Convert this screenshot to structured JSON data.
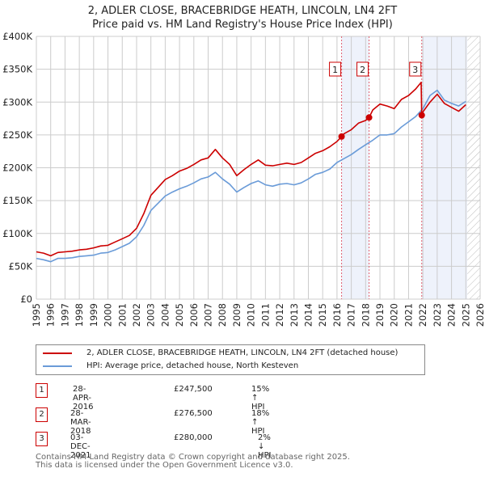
{
  "title_line1": "2, ADLER CLOSE, BRACEBRIDGE HEATH, LINCOLN, LN4 2FT",
  "title_line2": "Price paid vs. HM Land Registry's House Price Index (HPI)",
  "colors": {
    "property": "#cc0000",
    "hpi": "#6a9bd8",
    "shade": "#eef2fb",
    "marker_line": "#e06070"
  },
  "legend": {
    "property_label": "2, ADLER CLOSE, BRACEBRIDGE HEATH, LINCOLN, LN4 2FT (detached house)",
    "hpi_label": "HPI: Average price, detached house, North Kesteven"
  },
  "transactions": [
    {
      "num": "1",
      "date": "28-APR-2016",
      "price": "£247,500",
      "hpi": "15% ↑ HPI"
    },
    {
      "num": "2",
      "date": "28-MAR-2018",
      "price": "£276,500",
      "hpi": "18% ↑ HPI"
    },
    {
      "num": "3",
      "date": "03-DEC-2021",
      "price": "£280,000",
      "hpi": "2% ↓ HPI"
    }
  ],
  "footer_line1": "Contains HM Land Registry data © Crown copyright and database right 2025.",
  "footer_line2": "This data is licensed under the Open Government Licence v3.0.",
  "chart_data": {
    "type": "line",
    "title": "2, ADLER CLOSE, BRACEBRIDGE HEATH, LINCOLN, LN4 2FT — Price paid vs. HM Land Registry's House Price Index (HPI)",
    "xlabel": "",
    "ylabel": "",
    "xlim": [
      1995,
      2026
    ],
    "ylim": [
      0,
      400000
    ],
    "grid": true,
    "legend_position": "below",
    "x_ticks": [
      "1995",
      "1996",
      "1997",
      "1998",
      "1999",
      "2000",
      "2001",
      "2002",
      "2003",
      "2004",
      "2005",
      "2006",
      "2007",
      "2008",
      "2009",
      "2010",
      "2011",
      "2012",
      "2013",
      "2014",
      "2015",
      "2016",
      "2017",
      "2018",
      "2019",
      "2020",
      "2021",
      "2022",
      "2023",
      "2024",
      "2025",
      "2026"
    ],
    "y_ticks": [
      {
        "v": 0,
        "label": "£0"
      },
      {
        "v": 50000,
        "label": "£50K"
      },
      {
        "v": 100000,
        "label": "£100K"
      },
      {
        "v": 150000,
        "label": "£150K"
      },
      {
        "v": 200000,
        "label": "£200K"
      },
      {
        "v": 250000,
        "label": "£250K"
      },
      {
        "v": 300000,
        "label": "£300K"
      },
      {
        "v": 350000,
        "label": "£350K"
      },
      {
        "v": 400000,
        "label": "£400K"
      }
    ],
    "shaded_periods": [
      [
        2016.32,
        2018.24
      ],
      [
        2021.92,
        2025.1
      ]
    ],
    "forecast_hatch_from": 2025.1,
    "sales": [
      {
        "label": "1",
        "x": 2016.32,
        "y": 247500
      },
      {
        "label": "2",
        "x": 2018.24,
        "y": 276500
      },
      {
        "label": "3",
        "x": 2021.92,
        "y": 280000
      }
    ],
    "series": [
      {
        "name": "2, ADLER CLOSE, BRACEBRIDGE HEATH, LINCOLN, LN4 2FT (detached house)",
        "x": [
          1995,
          1995.5,
          1996,
          1996.5,
          1997,
          1997.5,
          1998,
          1998.5,
          1999,
          1999.5,
          2000,
          2000.5,
          2001,
          2001.5,
          2002,
          2002.5,
          2003,
          2003.5,
          2004,
          2004.5,
          2005,
          2005.5,
          2006,
          2006.5,
          2007,
          2007.5,
          2008,
          2008.5,
          2009,
          2009.5,
          2010,
          2010.5,
          2011,
          2011.5,
          2012,
          2012.5,
          2013,
          2013.5,
          2014,
          2014.5,
          2015,
          2015.5,
          2016,
          2016.32,
          2016.5,
          2017,
          2017.5,
          2018,
          2018.24,
          2018.5,
          2019,
          2019.5,
          2020,
          2020.5,
          2021,
          2021.5,
          2021.88,
          2021.92,
          2022,
          2022.5,
          2023,
          2023.5,
          2024,
          2024.5,
          2025
        ],
        "values": [
          72000,
          70000,
          66000,
          71000,
          72000,
          73000,
          75000,
          76000,
          78000,
          81000,
          82000,
          87000,
          92000,
          97000,
          108000,
          130000,
          158000,
          170000,
          182000,
          188000,
          195000,
          199000,
          205000,
          212000,
          215000,
          228000,
          215000,
          205000,
          188000,
          197000,
          205000,
          212000,
          204000,
          203000,
          205000,
          207000,
          205000,
          208000,
          215000,
          222000,
          226000,
          232000,
          240000,
          247500,
          252000,
          258000,
          268000,
          272000,
          276500,
          288000,
          297000,
          294000,
          290000,
          304000,
          310000,
          320000,
          330000,
          280000,
          285000,
          300000,
          312000,
          298000,
          292000,
          286000,
          296000
        ]
      },
      {
        "name": "HPI: Average price, detached house, North Kesteven",
        "x": [
          1995,
          1995.5,
          1996,
          1996.5,
          1997,
          1997.5,
          1998,
          1998.5,
          1999,
          1999.5,
          2000,
          2000.5,
          2001,
          2001.5,
          2002,
          2002.5,
          2003,
          2003.5,
          2004,
          2004.5,
          2005,
          2005.5,
          2006,
          2006.5,
          2007,
          2007.5,
          2008,
          2008.5,
          2009,
          2009.5,
          2010,
          2010.5,
          2011,
          2011.5,
          2012,
          2012.5,
          2013,
          2013.5,
          2014,
          2014.5,
          2015,
          2015.5,
          2016,
          2016.5,
          2017,
          2017.5,
          2018,
          2018.5,
          2019,
          2019.5,
          2020,
          2020.5,
          2021,
          2021.5,
          2022,
          2022.5,
          2023,
          2023.5,
          2024,
          2024.5,
          2025
        ],
        "values": [
          62000,
          60000,
          57000,
          62000,
          62000,
          63000,
          65000,
          66000,
          67000,
          70000,
          71000,
          75000,
          80000,
          85000,
          95000,
          112000,
          135000,
          146000,
          157000,
          163000,
          168000,
          172000,
          177000,
          183000,
          186000,
          193000,
          183000,
          175000,
          163000,
          170000,
          176000,
          180000,
          174000,
          172000,
          175000,
          176000,
          174000,
          177000,
          183000,
          190000,
          193000,
          198000,
          208000,
          214000,
          220000,
          228000,
          235000,
          242000,
          250000,
          250000,
          252000,
          262000,
          270000,
          278000,
          290000,
          310000,
          318000,
          303000,
          298000,
          294000,
          301000
        ]
      }
    ]
  }
}
